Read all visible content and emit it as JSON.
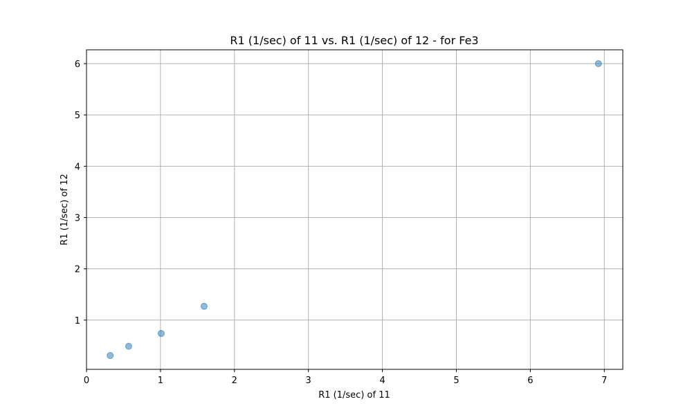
{
  "chart_data": {
    "type": "scatter",
    "title": "R1 (1/sec) of 11 vs. R1 (1/sec) of 12 - for Fe3",
    "xlabel": "R1 (1/sec) of 11",
    "ylabel": "R1 (1/sec) of 12",
    "xlim": [
      0,
      7.25
    ],
    "ylim": [
      0.04,
      6.27
    ],
    "xticks": [
      0,
      1,
      2,
      3,
      4,
      5,
      6,
      7
    ],
    "yticks": [
      1,
      2,
      3,
      4,
      5,
      6
    ],
    "grid": true,
    "marker_color": "#1f77b4",
    "marker_opacity": 0.5,
    "points": [
      {
        "x": 0.32,
        "y": 0.31
      },
      {
        "x": 0.57,
        "y": 0.49
      },
      {
        "x": 1.01,
        "y": 0.74
      },
      {
        "x": 1.59,
        "y": 1.27
      },
      {
        "x": 6.92,
        "y": 6.0
      }
    ]
  }
}
